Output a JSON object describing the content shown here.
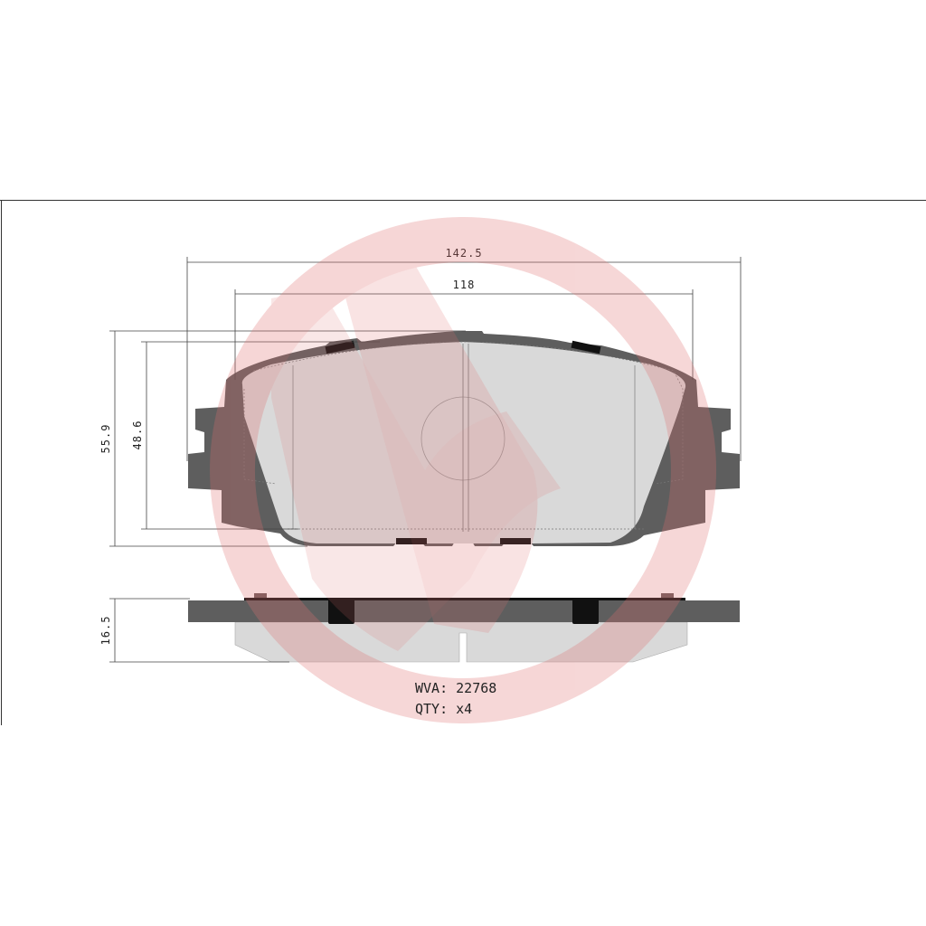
{
  "dimensions": {
    "overall_width": "142.5",
    "inner_width": "118",
    "overall_height": "55.9",
    "friction_height": "48.6",
    "thickness": "16.5"
  },
  "info": {
    "wva_label": "WVA:",
    "wva_value": "22768",
    "qty_label": "QTY:",
    "qty_value": "x4"
  },
  "colors": {
    "backing_plate": "#5e5e5e",
    "friction_material": "#d9d9d9",
    "clip": "#111111",
    "watermark": "#e8a0a0"
  },
  "watermark_logo": "brand-logo-watermark"
}
